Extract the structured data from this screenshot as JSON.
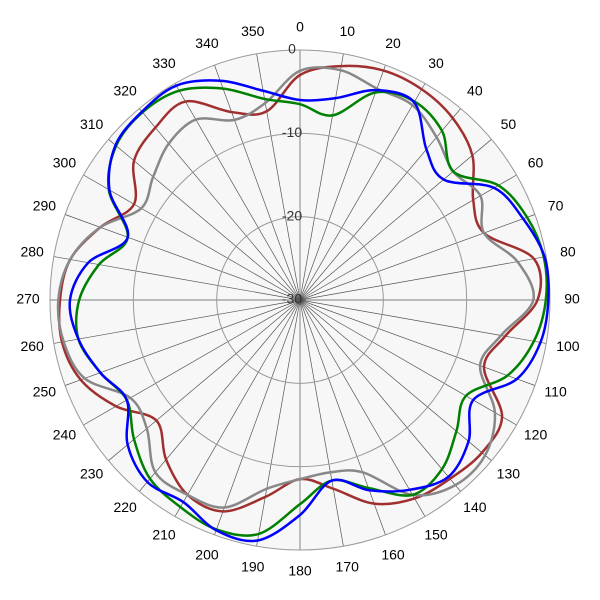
{
  "chart_data": {
    "type": "polar",
    "x": [
      0,
      10,
      20,
      30,
      40,
      50,
      60,
      70,
      80,
      90,
      100,
      110,
      120,
      130,
      140,
      150,
      160,
      170,
      180,
      190,
      200,
      210,
      220,
      230,
      240,
      250,
      260,
      270,
      280,
      290,
      300,
      310,
      320,
      330,
      340,
      350
    ],
    "xticks": [
      0,
      10,
      20,
      30,
      40,
      50,
      60,
      70,
      80,
      90,
      100,
      110,
      120,
      130,
      140,
      150,
      160,
      170,
      180,
      190,
      200,
      210,
      220,
      230,
      240,
      250,
      260,
      270,
      280,
      290,
      300,
      310,
      320,
      330,
      340,
      350
    ],
    "ylim": [
      -30,
      0
    ],
    "yticks": [
      -30,
      -20,
      -10,
      0
    ],
    "grid": true,
    "series": [
      {
        "color": "#a03030",
        "values": [
          -3,
          -1.5,
          -0.7,
          -0.8,
          -1.5,
          -3,
          -6,
          -6.5,
          -1.5,
          -1.5,
          -5,
          -6.5,
          -2,
          -1.5,
          -2,
          -2.5,
          -4,
          -7,
          -8.5,
          -6,
          -3,
          -3,
          -5,
          -7.5,
          -4.5,
          -2,
          -1,
          -1.2,
          -2,
          -4.5,
          -7,
          -4,
          -3,
          -2.5,
          -6,
          -7
        ]
      },
      {
        "color": "#888888",
        "values": [
          -2.5,
          -2,
          -3,
          -3,
          -4.5,
          -6,
          -5,
          -6.5,
          -3.5,
          -2,
          -5.5,
          -7,
          -3,
          -1,
          -1,
          -3,
          -8,
          -9,
          -8.5,
          -7,
          -3.5,
          -3,
          -3,
          -6,
          -6.5,
          -2.5,
          -1.2,
          -1,
          -2,
          -4.5,
          -8,
          -7,
          -5.5,
          -5,
          -7,
          -6
        ]
      },
      {
        "color": "#008000",
        "values": [
          -6.5,
          -7.5,
          -3.5,
          -2.5,
          -3.5,
          -6,
          -2.5,
          -1,
          -0.3,
          -0.5,
          -1.5,
          -3.5,
          -7,
          -5.5,
          -3.5,
          -3,
          -6,
          -8,
          -5.5,
          -1.5,
          -0.7,
          -1.3,
          -2,
          -4,
          -6,
          -4.5,
          -3,
          -3.5,
          -5.5,
          -8,
          -3.5,
          -1.2,
          -0.6,
          -1,
          -3,
          -5.5
        ]
      },
      {
        "color": "#0000ff",
        "values": [
          -6,
          -5.4,
          -3.2,
          -2.6,
          -6.4,
          -7.5,
          -3.1,
          -1.5,
          -0.2,
          -0.2,
          -0.7,
          -2.3,
          -6,
          -3.6,
          -2.3,
          -3.7,
          -5.7,
          -8,
          -4.2,
          -0.7,
          -0.6,
          -2,
          -1.5,
          -3,
          -6,
          -4.5,
          -3,
          -2.4,
          -4.2,
          -8,
          -3.6,
          -1.1,
          -0.5,
          -0.3,
          -2,
          -4.5
        ]
      }
    ]
  }
}
